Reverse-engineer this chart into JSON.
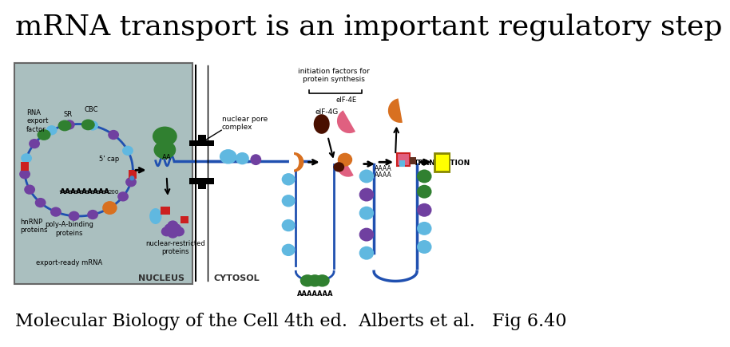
{
  "title": "mRNA transport is an important regulatory step",
  "caption": "Molecular Biology of the Cell 4th ed.  Alberts et al.   Fig 6.40",
  "title_fontsize": 26,
  "caption_fontsize": 16,
  "bg_color": "#ffffff",
  "title_color": "#000000",
  "caption_color": "#000000",
  "nucleus_bg": "#aabfbf",
  "purple": "#7040a0",
  "skyblue": "#60b8e0",
  "red": "#cc2020",
  "green_dark": "#308030",
  "orange_c": "#d87020",
  "dark_brown": "#4a1000",
  "pink": "#e06080",
  "blue_line": "#2050b0",
  "yellow": "#ffff00",
  "black": "#000000"
}
